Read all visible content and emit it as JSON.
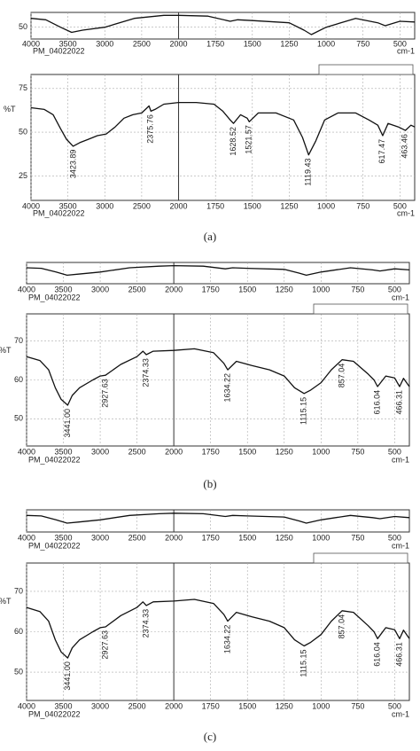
{
  "captions": [
    "(a)",
    "(b)",
    "(c)"
  ],
  "chart_data": [
    {
      "type": "line",
      "xlim": [
        4000,
        400
      ],
      "xticks": [
        4000,
        3500,
        3000,
        2500,
        2000,
        1750,
        1500,
        1250,
        1000,
        750,
        500
      ],
      "ylim": [
        34,
        70
      ],
      "yticks": [
        50
      ],
      "grid": true,
      "sample": "PM_04022022",
      "xlabel": "cm-1",
      "color": "#111111",
      "x": [
        4000,
        3800,
        3600,
        3450,
        3300,
        3000,
        2600,
        2200,
        2000,
        1800,
        1650,
        1600,
        1500,
        1250,
        1150,
        1100,
        1000,
        800,
        650,
        600,
        500,
        400
      ],
      "values": [
        62,
        60,
        50,
        43,
        46,
        50,
        62,
        66,
        66,
        65,
        58,
        60,
        59,
        56,
        46,
        40,
        50,
        62,
        56,
        52,
        58,
        57
      ]
    },
    {
      "type": "line",
      "xlim": [
        4000,
        400
      ],
      "xticks": [
        4000,
        3500,
        3000,
        2500,
        2000,
        1750,
        1500,
        1250,
        1000,
        750,
        500
      ],
      "ylim": [
        11,
        83
      ],
      "yticks": [
        25,
        50,
        75
      ],
      "ylabel": "%T",
      "grid": true,
      "sample": "PM_04022022",
      "xlabel": "cm-1",
      "color": "#111111",
      "x": [
        4000,
        3820,
        3700,
        3600,
        3520,
        3430,
        3340,
        3220,
        3100,
        2980,
        2860,
        2740,
        2620,
        2500,
        2400,
        2375,
        2320,
        2200,
        2000,
        1880,
        1760,
        1700,
        1650,
        1628,
        1580,
        1535,
        1521,
        1460,
        1340,
        1220,
        1160,
        1119,
        1070,
        1010,
        920,
        800,
        710,
        650,
        617,
        580,
        510,
        463,
        425,
        400
      ],
      "values": [
        64,
        63,
        60,
        52,
        46,
        42,
        44,
        46,
        48,
        49,
        53,
        58,
        60,
        61,
        65,
        62,
        63,
        66,
        67,
        67,
        66,
        62,
        57,
        55,
        60,
        58,
        56,
        61,
        61,
        57,
        47,
        37,
        45,
        57,
        61,
        61,
        57,
        54,
        48,
        55,
        53,
        51,
        54,
        53
      ],
      "annotations": [
        {
          "x": 3423.89,
          "label": "3423.89"
        },
        {
          "x": 2375.76,
          "label": "2375.76"
        },
        {
          "x": 1628.52,
          "label": "1628.52"
        },
        {
          "x": 1521.57,
          "label": "1521.57"
        },
        {
          "x": 1119.43,
          "label": "1119.43"
        },
        {
          "x": 617.47,
          "label": "617.47"
        },
        {
          "x": 463.46,
          "label": "463.46"
        }
      ]
    },
    {
      "type": "line",
      "xlim": [
        4000,
        400
      ],
      "xticks": [
        4000,
        3500,
        3000,
        2500,
        2000,
        1750,
        1500,
        1250,
        1000,
        750,
        500
      ],
      "ylim": [
        40,
        80
      ],
      "yticks": [],
      "grid": true,
      "sample": "PM_04022022",
      "xlabel": "cm-1",
      "color": "#111111",
      "x": [
        4000,
        3800,
        3600,
        3450,
        3300,
        3000,
        2600,
        2200,
        2000,
        1800,
        1650,
        1600,
        1500,
        1250,
        1150,
        1100,
        1000,
        800,
        650,
        600,
        500,
        400
      ],
      "values": [
        70,
        69,
        62,
        56,
        58,
        62,
        70,
        73,
        74,
        73,
        68,
        70,
        69,
        67,
        60,
        56,
        62,
        70,
        66,
        64,
        68,
        66
      ]
    },
    {
      "type": "line",
      "xlim": [
        4000,
        400
      ],
      "xticks": [
        4000,
        3500,
        3000,
        2500,
        2000,
        1750,
        1500,
        1250,
        1000,
        750,
        500
      ],
      "ylim": [
        43,
        77
      ],
      "yticks": [
        50,
        60,
        70
      ],
      "ylabel": "%T",
      "grid": true,
      "sample": "PM_04022022",
      "xlabel": "cm-1",
      "color": "#111111",
      "x": [
        4000,
        3820,
        3700,
        3610,
        3530,
        3441,
        3380,
        3280,
        3100,
        3000,
        2927,
        2720,
        2500,
        2420,
        2374,
        2280,
        2000,
        1860,
        1730,
        1660,
        1634,
        1575,
        1470,
        1350,
        1250,
        1180,
        1115,
        1070,
        1000,
        930,
        857,
        780,
        680,
        640,
        616,
        560,
        500,
        466,
        440,
        400
      ],
      "values": [
        66,
        65,
        62.6,
        58,
        55,
        53.5,
        56,
        58,
        60,
        61,
        61.2,
        64,
        66,
        67.4,
        66.5,
        67.4,
        67.6,
        68,
        67,
        64.3,
        62.6,
        64.8,
        63.7,
        62.6,
        61,
        58,
        56.5,
        57.4,
        59.3,
        62.6,
        65.2,
        64.8,
        61.5,
        60,
        58.3,
        61,
        60.5,
        58.3,
        60.4,
        58.3
      ],
      "annotations": [
        {
          "x": 3441.0,
          "label": "3441.00"
        },
        {
          "x": 2927.63,
          "label": "2927.63"
        },
        {
          "x": 2374.33,
          "label": "2374.33"
        },
        {
          "x": 1634.22,
          "label": "1634.22"
        },
        {
          "x": 1115.15,
          "label": "1115.15"
        },
        {
          "x": 857.04,
          "label": "857.04"
        },
        {
          "x": 616.04,
          "label": "616.04"
        },
        {
          "x": 466.31,
          "label": "466.31"
        }
      ]
    },
    {
      "type": "line",
      "xlim": [
        4000,
        400
      ],
      "xticks": [
        4000,
        3500,
        3000,
        2500,
        2000,
        1750,
        1500,
        1250,
        1000,
        750,
        500
      ],
      "ylim": [
        40,
        80
      ],
      "yticks": [],
      "grid": true,
      "sample": "PM_04022022",
      "xlabel": "cm-1",
      "color": "#111111",
      "x": [
        4000,
        3800,
        3600,
        3450,
        3300,
        3000,
        2600,
        2200,
        2000,
        1800,
        1650,
        1600,
        1500,
        1250,
        1150,
        1100,
        1000,
        800,
        650,
        600,
        500,
        400
      ],
      "values": [
        70,
        69,
        62,
        56,
        58,
        62,
        70,
        73,
        74,
        73,
        68,
        70,
        69,
        67,
        60,
        56,
        62,
        70,
        66,
        64,
        68,
        66
      ]
    },
    {
      "type": "line",
      "xlim": [
        4000,
        400
      ],
      "xticks": [
        4000,
        3500,
        3000,
        2500,
        2000,
        1750,
        1500,
        1250,
        1000,
        750,
        500
      ],
      "ylim": [
        43,
        77
      ],
      "yticks": [
        50,
        60,
        70
      ],
      "ylabel": "%T",
      "grid": true,
      "sample": "PM_04022022",
      "xlabel": "cm-1",
      "color": "#111111",
      "x": [
        4000,
        3820,
        3700,
        3610,
        3530,
        3441,
        3380,
        3280,
        3100,
        3000,
        2927,
        2720,
        2500,
        2420,
        2374,
        2280,
        2000,
        1860,
        1730,
        1660,
        1634,
        1575,
        1470,
        1350,
        1250,
        1180,
        1115,
        1070,
        1000,
        930,
        857,
        780,
        680,
        640,
        616,
        560,
        500,
        466,
        440,
        400
      ],
      "values": [
        66,
        65,
        62.6,
        58,
        55,
        53.5,
        56,
        58,
        60,
        61,
        61.2,
        64,
        66,
        67.4,
        66.5,
        67.4,
        67.6,
        68,
        67,
        64.3,
        62.6,
        64.8,
        63.7,
        62.6,
        61,
        58,
        56.5,
        57.4,
        59.3,
        62.6,
        65.2,
        64.8,
        61.5,
        60,
        58.3,
        61,
        60.5,
        58.3,
        60.4,
        58.3
      ],
      "annotations": [
        {
          "x": 3441.0,
          "label": "3441.00"
        },
        {
          "x": 2927.63,
          "label": "2927.63"
        },
        {
          "x": 2374.33,
          "label": "2374.33"
        },
        {
          "x": 1634.22,
          "label": "1634.22"
        },
        {
          "x": 1115.15,
          "label": "1115.15"
        },
        {
          "x": 857.04,
          "label": "857.04"
        },
        {
          "x": 616.04,
          "label": "616.04"
        },
        {
          "x": 466.31,
          "label": "466.31"
        }
      ]
    }
  ]
}
